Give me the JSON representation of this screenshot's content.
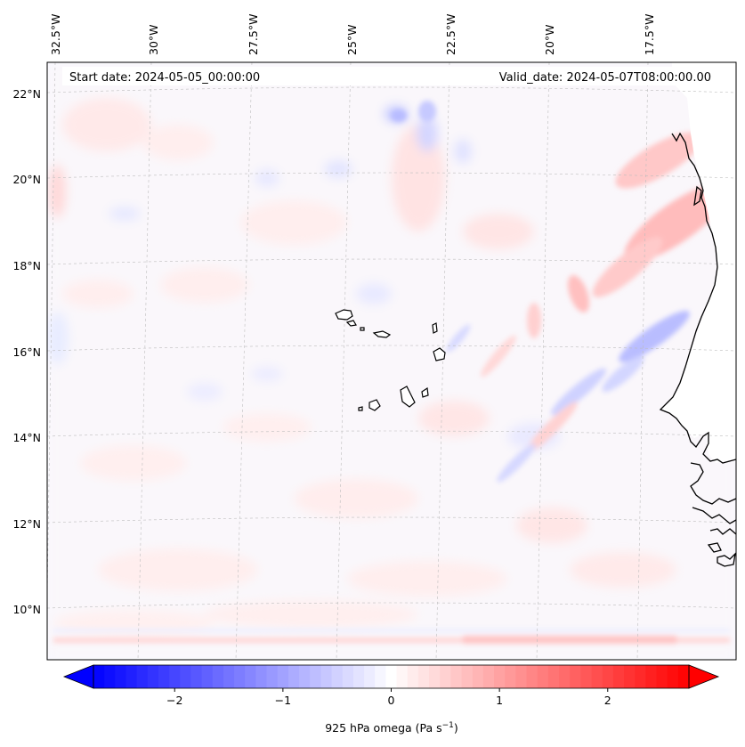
{
  "map": {
    "title_start": "Start date: 2024-05-05_00:00:00",
    "title_valid": "Valid_date: 2024-05-07T08:00:00.00",
    "lon_labels": [
      "32.5°W",
      "30°W",
      "27.5°W",
      "25°W",
      "22.5°W",
      "20°W",
      "17.5°W"
    ],
    "lat_labels": [
      "22°N",
      "20°N",
      "18°N",
      "16°N",
      "14°N",
      "12°N",
      "10°N"
    ]
  },
  "colorbar": {
    "label_main": "925 hPa omega (Pa s",
    "label_exp": "−1",
    "label_close": ")",
    "ticks": [
      "−2",
      "−1",
      "0",
      "1",
      "2"
    ],
    "tick_values": [
      -2,
      -1,
      0,
      1,
      2
    ],
    "vmin": -2.75,
    "vmax": 2.75,
    "n_levels": 55
  },
  "colors": {
    "negative": "#0000ff",
    "positive": "#ff0000",
    "neutral": "#ffffff",
    "coastline": "#000000",
    "grid": "#bdbdbd"
  }
}
